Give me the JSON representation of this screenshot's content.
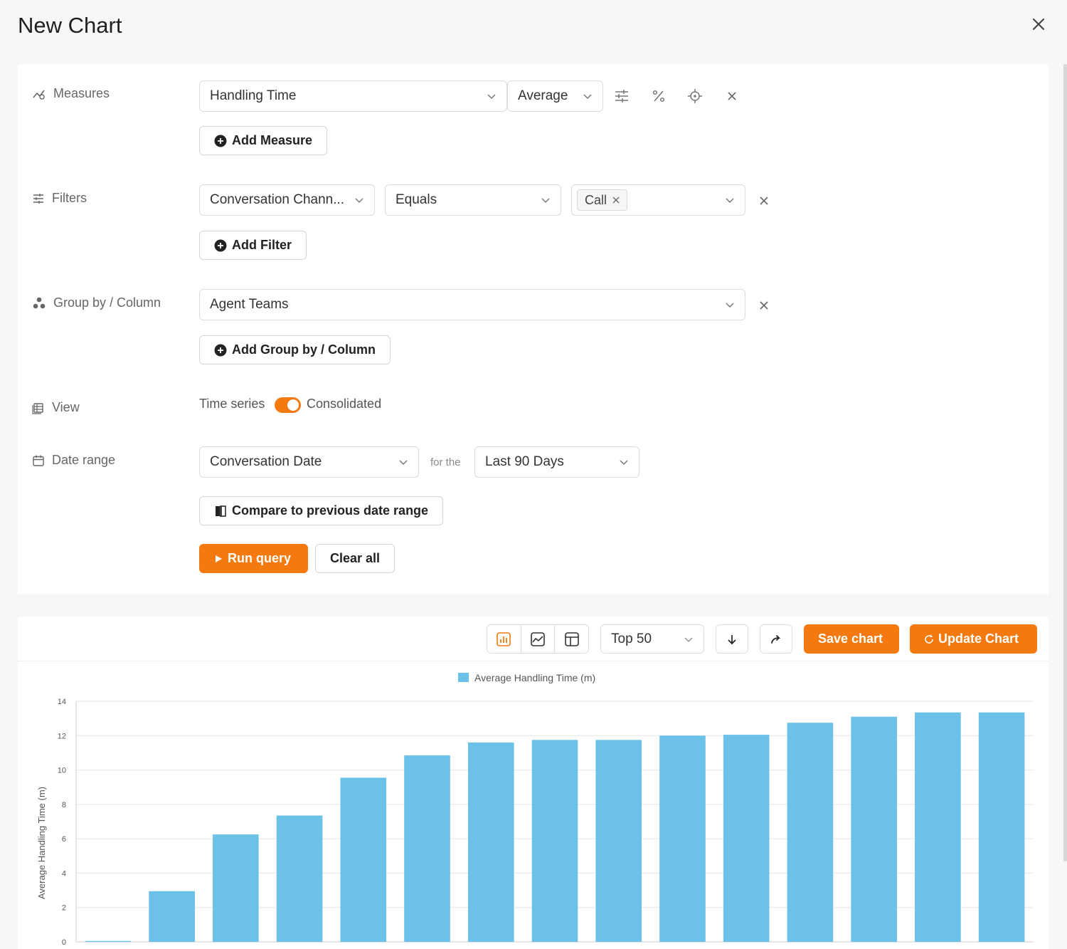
{
  "dialog": {
    "title": "New Chart"
  },
  "measures": {
    "label": "Measures",
    "field": "Handling Time",
    "aggregation": "Average",
    "add_label": "Add Measure"
  },
  "filters": {
    "label": "Filters",
    "field": "Conversation Chann...",
    "operator": "Equals",
    "value_chip": "Call",
    "add_label": "Add Filter"
  },
  "group_by": {
    "label": "Group by / Column",
    "field": "Agent Teams",
    "add_label": "Add Group by / Column"
  },
  "view": {
    "label": "View",
    "option_left": "Time series",
    "option_right": "Consolidated",
    "consolidated": true
  },
  "date_range": {
    "label": "Date range",
    "field": "Conversation Date",
    "connector": "for the",
    "period": "Last 90 Days",
    "compare_label": "Compare to previous date range"
  },
  "actions": {
    "run_label": "Run query",
    "clear_label": "Clear all"
  },
  "chart_toolbar": {
    "top_n": "Top 50",
    "save_label": "Save chart",
    "update_label": "Update Chart",
    "accent": "#f47a0f"
  },
  "chart_data": {
    "type": "bar",
    "legend": [
      "Average Handling Time (m)"
    ],
    "legend_position": "top-center",
    "ylabel": "Average Handling Time (m)",
    "xlabel": "",
    "ylim": [
      0,
      14
    ],
    "yticks": [
      0,
      2,
      4,
      6,
      8,
      10,
      12,
      14
    ],
    "grid": true,
    "color": "#6cc1e8",
    "series": [
      {
        "name": "Average Handling Time (m)",
        "values": [
          0.05,
          2.95,
          6.25,
          7.35,
          9.55,
          10.85,
          11.6,
          11.75,
          11.75,
          12.0,
          12.05,
          12.75,
          13.1,
          13.35,
          13.35
        ]
      }
    ]
  }
}
